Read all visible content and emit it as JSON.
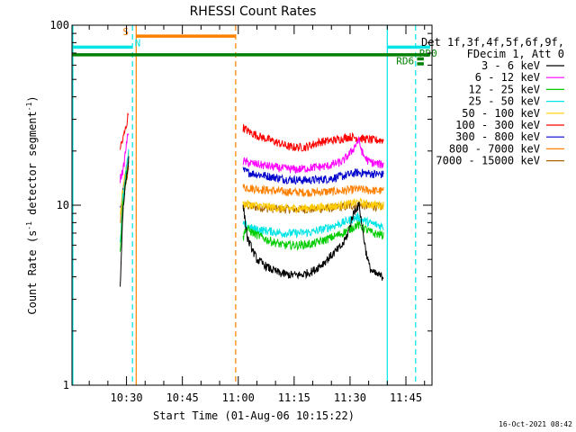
{
  "chart_data": {
    "type": "line",
    "title": "RHESSI Count Rates",
    "xlabel": "Start Time (01-Aug-06 10:15:22)",
    "ylabel": "Count Rate (s",
    "ylabel_sup1": "-1",
    "ylabel_mid": " detector segment",
    "ylabel_sup2": "-1",
    "ylabel_end": ")",
    "x_min_minutes": 615.37,
    "x_max_minutes": 712,
    "y_scale": "log",
    "ylim": [
      1,
      100
    ],
    "x_ticks": [
      {
        "min": 630,
        "label": "10:30"
      },
      {
        "min": 645,
        "label": "10:45"
      },
      {
        "min": 660,
        "label": "11:00"
      },
      {
        "min": 675,
        "label": "11:15"
      },
      {
        "min": 690,
        "label": "11:30"
      },
      {
        "min": 705,
        "label": "11:45"
      }
    ],
    "y_ticks": [
      {
        "value": 1,
        "label": "1"
      },
      {
        "value": 10,
        "label": "10"
      },
      {
        "value": 100,
        "label": "100"
      }
    ],
    "legend_header": [
      "Det 1f,3f,4f,5f,6f,9f,",
      "FDecim 1, Att 0"
    ],
    "legend_position": "right",
    "series": [
      {
        "name": "3 - 6 keV",
        "color": "#000000",
        "segments": [
          {
            "x": [
              628.3,
              629.0,
              629.7,
              630.6
            ],
            "y": [
              3.5,
              9.0,
              13.0,
              18.0
            ]
          },
          {
            "x": [
              661.3,
              662.5,
              665,
              668,
              671,
              674,
              677,
              680,
              683,
              686,
              688,
              689.5,
              690.5,
              691.5,
              692.5,
              693.3,
              694.3,
              695.3,
              696.3,
              697.5,
              699.0
            ],
            "y": [
              10.0,
              6.5,
              5.0,
              4.5,
              4.2,
              4.1,
              4.1,
              4.3,
              4.8,
              5.5,
              6.0,
              7.0,
              8.5,
              9.5,
              10.0,
              7.5,
              5.5,
              4.5,
              4.2,
              4.1,
              4.0
            ]
          }
        ]
      },
      {
        "name": "6 - 12 keV",
        "color": "#ff00ff",
        "segments": [
          {
            "x": [
              628.3,
              629.2,
              630.0,
              630.6
            ],
            "y": [
              14.0,
              16.0,
              22.0,
              26.0
            ]
          },
          {
            "x": [
              661.3,
              664,
              668,
              672,
              676,
              680,
              684,
              688,
              690.5,
              692.3,
              693.5,
              695,
              697,
              699.0
            ],
            "y": [
              17.5,
              17.0,
              16.5,
              16.0,
              15.8,
              16.2,
              16.5,
              17.5,
              20.0,
              23.0,
              19.0,
              17.5,
              17.0,
              16.8
            ]
          }
        ]
      },
      {
        "name": "12 - 25 keV",
        "color": "#00cc00",
        "segments": [
          {
            "x": [
              628.3,
              629.0,
              630.0,
              630.6
            ],
            "y": [
              5.5,
              10.0,
              15.0,
              18.0
            ]
          },
          {
            "x": [
              661.3,
              662,
              664,
              668,
              672,
              676,
              680,
              684,
              688,
              692,
              694,
              696,
              699.0
            ],
            "y": [
              6.5,
              7.5,
              7.0,
              6.4,
              6.0,
              6.0,
              6.1,
              6.5,
              7.0,
              7.8,
              7.4,
              7.0,
              6.8
            ]
          }
        ]
      },
      {
        "name": "25 - 50 keV",
        "color": "#00e5e5",
        "segments": [
          {
            "x": [
              628.3,
              629.0,
              630.0,
              630.6
            ],
            "y": [
              6.0,
              11.0,
              16.0,
              20.0
            ]
          },
          {
            "x": [
              661.3,
              664,
              668,
              672,
              676,
              680,
              684,
              688,
              692,
              695,
              699.0
            ],
            "y": [
              7.8,
              7.4,
              7.2,
              7.0,
              7.0,
              7.1,
              7.5,
              8.0,
              8.6,
              8.0,
              7.6
            ]
          }
        ]
      },
      {
        "name": "50 - 100 keV",
        "color": "#ffcc00",
        "segments": [
          {
            "x": [
              628.3,
              629.0,
              630.0,
              630.6
            ],
            "y": [
              9.0,
              12.0,
              16.5,
              19.0
            ]
          },
          {
            "x": [
              661.3,
              664,
              668,
              672,
              676,
              680,
              684,
              688,
              692,
              695,
              699.0
            ],
            "y": [
              10.2,
              10.0,
              9.8,
              9.6,
              9.6,
              9.7,
              9.8,
              10.0,
              10.4,
              10.1,
              10.0
            ]
          }
        ]
      },
      {
        "name": "100 - 300 keV",
        "color": "#ff0000",
        "segments": [
          {
            "x": [
              628.3,
              629.0,
              630.0,
              630.6
            ],
            "y": [
              21.0,
              23.0,
              28.0,
              33.0
            ]
          },
          {
            "x": [
              661.3,
              663,
              666,
              670,
              674,
              678,
              682,
              686,
              690,
              693,
              696,
              699.0
            ],
            "y": [
              27.0,
              25.5,
              24.0,
              22.5,
              21.0,
              21.0,
              22.5,
              23.0,
              24.0,
              23.5,
              23.0,
              23.0
            ]
          }
        ]
      },
      {
        "name": "300 - 800 keV",
        "color": "#0000cc",
        "segments": [
          {
            "x": [
              628.3,
              629.0,
              630.0,
              630.6
            ],
            "y": [
              9.5,
              12.0,
              16.0,
              18.5
            ]
          },
          {
            "x": [
              661.3,
              664,
              668,
              672,
              676,
              680,
              684,
              688,
              692,
              695,
              699.0
            ],
            "y": [
              15.5,
              15.0,
              14.5,
              14.0,
              13.8,
              13.8,
              14.0,
              14.5,
              15.2,
              15.0,
              14.8
            ]
          }
        ]
      },
      {
        "name": "800 - 7000 keV",
        "color": "#ff8000",
        "segments": [
          {
            "x": [
              628.3,
              629.0,
              630.0,
              630.6
            ],
            "y": [
              8.0,
              11.0,
              14.5,
              17.0
            ]
          },
          {
            "x": [
              661.3,
              664,
              668,
              672,
              676,
              680,
              684,
              688,
              692,
              695,
              699.0
            ],
            "y": [
              12.6,
              12.4,
              12.1,
              11.9,
              11.8,
              11.8,
              11.9,
              12.0,
              12.3,
              12.1,
              12.0
            ]
          }
        ]
      },
      {
        "name": "7000 - 15000 keV",
        "color": "#aa6600",
        "segments": [
          {
            "x": [
              628.3,
              629.0,
              630.0,
              630.6
            ],
            "y": [
              8.0,
              10.5,
              14.0,
              16.0
            ]
          },
          {
            "x": [
              661.3,
              664,
              668,
              672,
              676,
              680,
              684,
              688,
              692,
              695,
              699.0
            ],
            "y": [
              10.0,
              9.8,
              9.6,
              9.5,
              9.5,
              9.5,
              9.6,
              9.8,
              10.0,
              9.9,
              9.8
            ]
          }
        ]
      }
    ],
    "vertical_markers": [
      {
        "x": 615.6,
        "color": "#00e5e5",
        "style": "solid"
      },
      {
        "x": 631.6,
        "color": "#00e5e5",
        "style": "dashed"
      },
      {
        "x": 632.6,
        "color": "#ff8000",
        "style": "solid"
      },
      {
        "x": 659.3,
        "color": "#ff8000",
        "style": "dashed"
      },
      {
        "x": 700.0,
        "color": "#00e5e5",
        "style": "solid"
      },
      {
        "x": 707.6,
        "color": "#00e5e5",
        "style": "dashed"
      }
    ],
    "flag_bars": [
      {
        "x1": 615.4,
        "x2": 631.5,
        "y": 75.5,
        "color": "#00e5e5"
      },
      {
        "x1": 632.6,
        "x2": 659.2,
        "y": 87.0,
        "color": "#ff8000"
      },
      {
        "x1": 615.4,
        "x2": 711.5,
        "y": 68.5,
        "color": "#008000"
      },
      {
        "x1": 700.0,
        "x2": 711.5,
        "y": 75.5,
        "color": "#00e5e5"
      },
      {
        "x1": 708.0,
        "x2": 709.8,
        "y": 65.0,
        "color": "#008000"
      },
      {
        "x1": 708.0,
        "x2": 709.8,
        "y": 61.0,
        "color": "#008000"
      }
    ],
    "flag_labels": [
      {
        "text": "S",
        "x": 629.8,
        "y": 88.0,
        "color": "#ff8000",
        "anchor": "middle"
      },
      {
        "text": "N",
        "x": 633.0,
        "y": 76.5,
        "color": "#00e5e5",
        "anchor": "middle"
      },
      {
        "text": "RD0",
        "x": 708.6,
        "y": 67.0,
        "color": "#008000",
        "anchor": "start"
      },
      {
        "text": "RD6",
        "x": 707.2,
        "y": 60.5,
        "color": "#008000",
        "anchor": "end"
      }
    ],
    "grid": false
  },
  "footer_timestamp": "16-Oct-2021 08:42"
}
